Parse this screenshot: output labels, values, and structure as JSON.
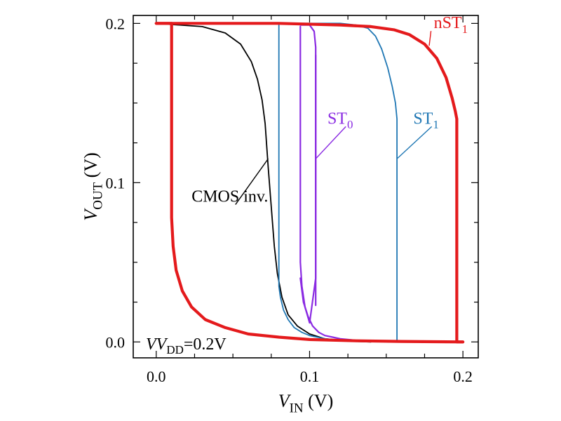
{
  "chart_data": {
    "type": "line",
    "xlabel": {
      "main": "V",
      "sub": "IN",
      "unit": " (V)"
    },
    "ylabel": {
      "main": "V",
      "sub": "OUT",
      "unit": " (V)"
    },
    "xlim": [
      -0.015,
      0.21
    ],
    "ylim": [
      -0.01,
      0.205
    ],
    "x_ticks": [
      {
        "value": 0.0,
        "label": "0.0"
      },
      {
        "value": 0.1,
        "label": "0.1"
      },
      {
        "value": 0.2,
        "label": "0.2"
      }
    ],
    "y_ticks": [
      {
        "value": 0.0,
        "label": "0.0"
      },
      {
        "value": 0.1,
        "label": "0.1"
      },
      {
        "value": 0.2,
        "label": "0.2"
      }
    ],
    "condition": {
      "prefix": "V",
      "main": "V",
      "sub": "DD",
      "value": "=0.2V"
    },
    "series": [
      {
        "name": "CMOS inv.",
        "label": {
          "main": "CMOS inv.",
          "sub": ""
        },
        "color": "#000000",
        "width": "thin",
        "x": [
          0.0,
          0.03,
          0.045,
          0.055,
          0.062,
          0.066,
          0.069,
          0.071,
          0.073,
          0.075,
          0.077,
          0.079,
          0.082,
          0.086,
          0.092,
          0.1,
          0.11,
          0.125,
          0.14
        ],
        "y": [
          0.2,
          0.198,
          0.194,
          0.187,
          0.176,
          0.165,
          0.152,
          0.137,
          0.11,
          0.085,
          0.06,
          0.043,
          0.028,
          0.017,
          0.01,
          0.005,
          0.002,
          0.0005,
          0.0
        ]
      },
      {
        "name": "ST0",
        "label": {
          "main": "ST",
          "sub": "0"
        },
        "color": "#8a2be2",
        "width": "medium",
        "x": [
          0.0,
          0.02,
          0.04,
          0.06,
          0.08,
          0.09,
          0.1,
          0.103,
          0.104,
          0.104,
          0.103,
          0.102,
          0.1,
          0.099,
          0.098,
          0.097,
          0.096,
          0.095,
          0.094,
          0.094,
          0.094
        ],
        "y": [
          0.2,
          0.2,
          0.2,
          0.2,
          0.2,
          0.199,
          0.196,
          0.19,
          0.18,
          0.1,
          0.023,
          0.018,
          0.013,
          0.006,
          0.007,
          0.01,
          0.015,
          0.022,
          0.035,
          0.19,
          0.198
        ],
        "path_note": "",
        "segments": [
          {
            "x": [
              0.094,
              0.094,
              0.095,
              0.097,
              0.1,
              0.104,
              0.104
            ],
            "y": [
              0.198,
              0.05,
              0.035,
              0.022,
              0.012,
              0.04,
              0.18
            ]
          },
          {
            "x": [
              0.094,
              0.096,
              0.099,
              0.102,
              0.106,
              0.11,
              0.115,
              0.12,
              0.13,
              0.14,
              0.155
            ],
            "y": [
              0.04,
              0.025,
              0.016,
              0.01,
              0.006,
              0.004,
              0.003,
              0.002,
              0.001,
              0.0005,
              0.0
            ]
          },
          {
            "x": [
              0.094,
              0.1,
              0.103,
              0.104,
              0.104
            ],
            "y": [
              0.199,
              0.199,
              0.195,
              0.185,
              0.023
            ]
          }
        ]
      },
      {
        "name": "ST1",
        "label": {
          "main": "ST",
          "sub": "1"
        },
        "color": "#1f77b4",
        "width": "thin",
        "segments": [
          {
            "x": [
              0.08,
              0.08,
              0.081,
              0.083,
              0.086,
              0.09,
              0.095,
              0.1,
              0.11,
              0.12,
              0.13,
              0.14,
              0.15,
              0.157,
              0.157
            ],
            "y": [
              0.199,
              0.035,
              0.028,
              0.02,
              0.014,
              0.009,
              0.006,
              0.004,
              0.002,
              0.001,
              0.0006,
              0.0003,
              0.0001,
              0.0,
              0.0
            ]
          },
          {
            "x": [
              0.08,
              0.09,
              0.1,
              0.11,
              0.12,
              0.13,
              0.138,
              0.143,
              0.147,
              0.151,
              0.154,
              0.156,
              0.157,
              0.157
            ],
            "y": [
              0.2,
              0.2,
              0.2,
              0.2,
              0.2,
              0.199,
              0.197,
              0.192,
              0.184,
              0.172,
              0.16,
              0.15,
              0.14,
              0.001
            ]
          }
        ]
      },
      {
        "name": "nST1",
        "label": {
          "main": "nST",
          "sub": "1"
        },
        "color": "#e41a1c",
        "width": "thick",
        "segments": [
          {
            "x": [
              0.0,
              0.04,
              0.08,
              0.12,
              0.14,
              0.155,
              0.165,
              0.175,
              0.183,
              0.189,
              0.193,
              0.195,
              0.196,
              0.196,
              0.2
            ],
            "y": [
              0.2,
              0.2,
              0.2,
              0.199,
              0.198,
              0.196,
              0.193,
              0.187,
              0.178,
              0.166,
              0.153,
              0.145,
              0.14,
              0.0,
              0.0
            ]
          },
          {
            "x": [
              0.01,
              0.01,
              0.011,
              0.013,
              0.017,
              0.023,
              0.032,
              0.045,
              0.06,
              0.08,
              0.1,
              0.13,
              0.16,
              0.2
            ],
            "y": [
              0.2,
              0.078,
              0.06,
              0.045,
              0.032,
              0.022,
              0.014,
              0.009,
              0.005,
              0.003,
              0.0015,
              0.0007,
              0.0003,
              0.0
            ]
          },
          {
            "x": [
              0.0,
              0.01
            ],
            "y": [
              0.2,
              0.2
            ]
          }
        ]
      }
    ],
    "annotations": [
      {
        "series": "CMOS inv.",
        "text": {
          "main": "CMOS inv.",
          "sub": ""
        },
        "at": [
          0.073,
          0.115
        ],
        "text_at": [
          0.048,
          0.088
        ],
        "anchor": "middle",
        "color": "#000000"
      },
      {
        "series": "ST0",
        "text": {
          "main": "ST",
          "sub": "0"
        },
        "at": [
          0.104,
          0.115
        ],
        "text_at": [
          0.12,
          0.137
        ],
        "anchor": "middle",
        "color": "#8a2be2"
      },
      {
        "series": "ST1",
        "text": {
          "main": "ST",
          "sub": "1"
        },
        "at": [
          0.157,
          0.115
        ],
        "text_at": [
          0.176,
          0.137
        ],
        "anchor": "middle",
        "color": "#1f77b4"
      },
      {
        "series": "nST1",
        "text": {
          "main": "nST",
          "sub": "1"
        },
        "at": [
          0.178,
          0.186
        ],
        "text_at": [
          0.181,
          0.197
        ],
        "anchor": "start",
        "color": "#e41a1c"
      }
    ]
  }
}
